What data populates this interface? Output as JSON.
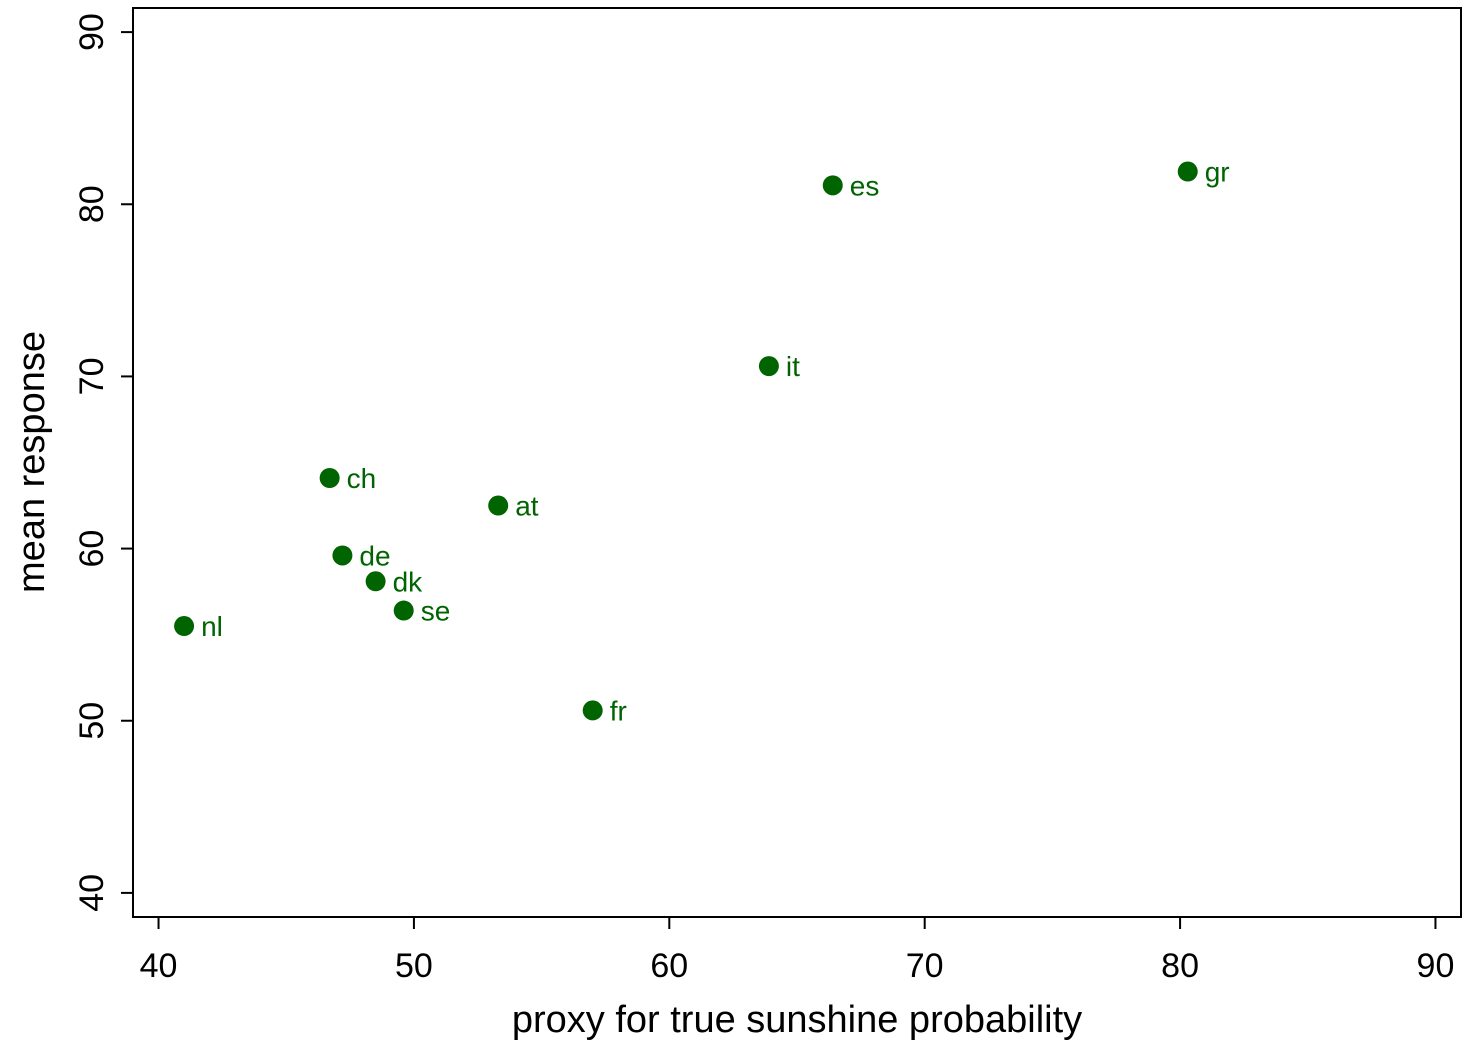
{
  "chart_data": {
    "type": "scatter",
    "title": "",
    "xlabel": "proxy for true sunshine probability",
    "ylabel": "mean response",
    "xlim": [
      39,
      91
    ],
    "ylim": [
      38.6,
      91.4
    ],
    "xticks": [
      40,
      50,
      60,
      70,
      80,
      90
    ],
    "yticks": [
      40,
      50,
      60,
      70,
      80,
      90
    ],
    "grid": false,
    "legend": "none",
    "marker_color": "#006400",
    "points": [
      {
        "label": "nl",
        "x": 41.0,
        "y": 55.5
      },
      {
        "label": "ch",
        "x": 46.7,
        "y": 64.1
      },
      {
        "label": "de",
        "x": 47.2,
        "y": 59.6
      },
      {
        "label": "dk",
        "x": 48.5,
        "y": 58.1
      },
      {
        "label": "se",
        "x": 49.6,
        "y": 56.4
      },
      {
        "label": "at",
        "x": 53.3,
        "y": 62.5
      },
      {
        "label": "fr",
        "x": 57.0,
        "y": 50.6
      },
      {
        "label": "it",
        "x": 63.9,
        "y": 70.6
      },
      {
        "label": "es",
        "x": 66.4,
        "y": 81.1
      },
      {
        "label": "gr",
        "x": 80.3,
        "y": 81.9
      }
    ]
  }
}
